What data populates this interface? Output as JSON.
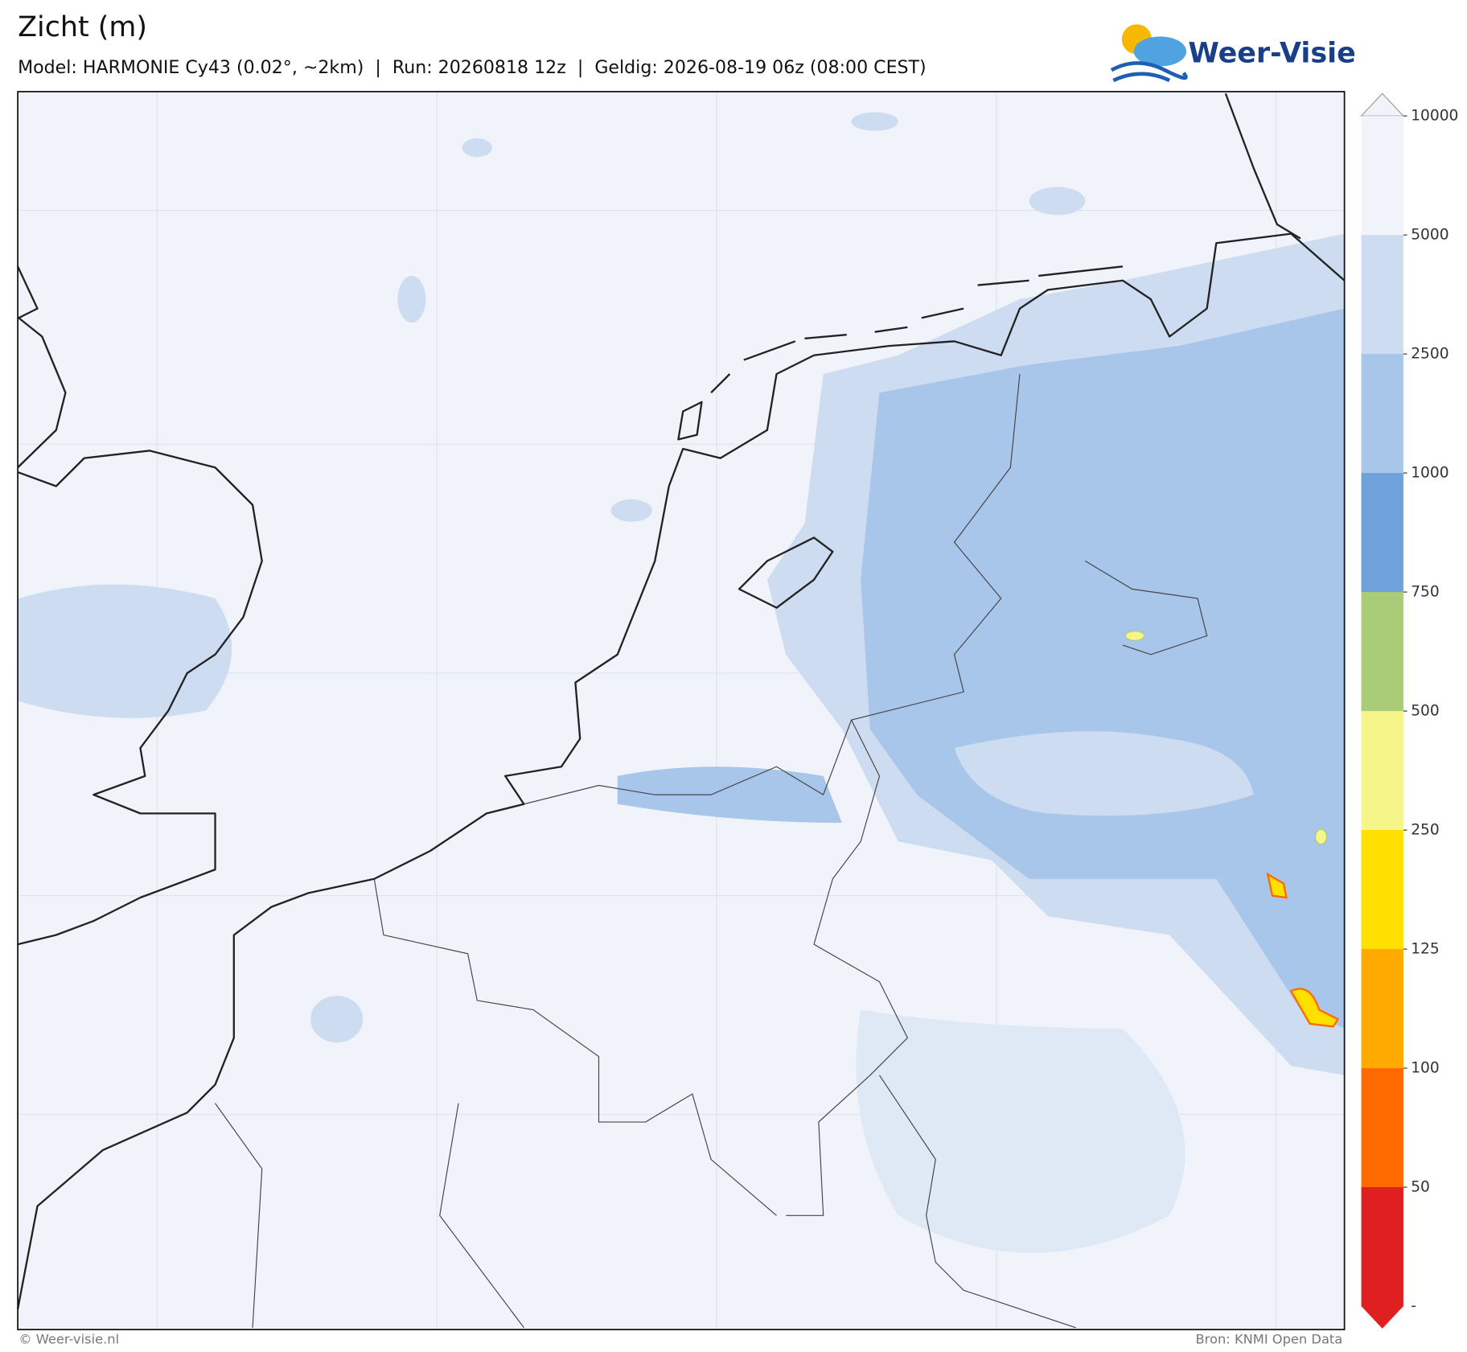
{
  "header": {
    "title": "Zicht (m)",
    "subtitle": "Model: HARMONIE Cy43 (0.02°, ~2km)  |  Run: 20260818 12z  |  Geldig: 2026-08-19 06z (08:00 CEST)"
  },
  "logo": {
    "text": "Weer-Visie"
  },
  "colorbar": {
    "ticks": [
      10000,
      5000,
      2500,
      1000,
      750,
      500,
      250,
      125,
      100,
      50
    ],
    "bottom_label": "-",
    "colors": [
      "#f0f4fa",
      "#cddcf0",
      "#a8c5ea",
      "#6fa2da",
      "#a8cc78",
      "#f5f58a",
      "#ffe000",
      "#ffaa00",
      "#ff6a00",
      "#e02020"
    ]
  },
  "footer": {
    "left": "© Weer-visie.nl",
    "right": "Bron: KNMI Open Data"
  }
}
